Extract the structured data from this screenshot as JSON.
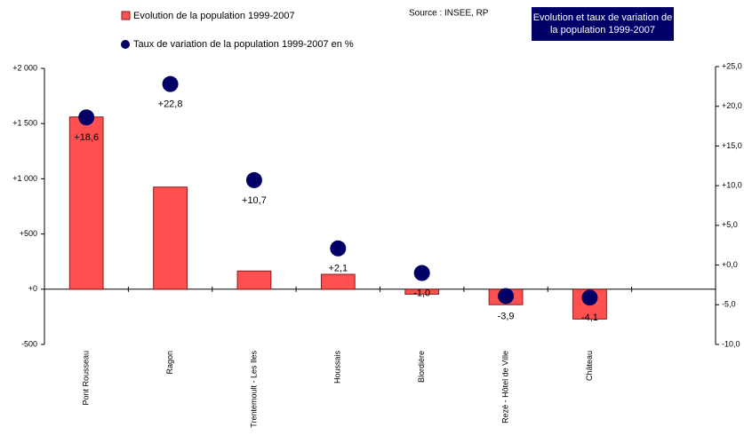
{
  "chart_data": {
    "type": "bar",
    "title": "Evolution et taux de variation de la population 1999-2007",
    "source": "Source : INSEE, RP",
    "categories": [
      "Pont Rousseau",
      "Ragon",
      "Trentemoult - Les Iles",
      "Houssais",
      "Blordière",
      "Rezé - Hôtel de Ville",
      "Château",
      null
    ],
    "series": [
      {
        "name": "Evolution de la population 1999-2007",
        "type": "bar",
        "color": "#ff5050",
        "values": [
          1560,
          925,
          165,
          135,
          -45,
          -140,
          -270,
          null
        ]
      },
      {
        "name": "Taux de variation de la population 1999-2007 en %",
        "type": "scatter",
        "axis": "y2",
        "color": "#000066",
        "values": [
          18.6,
          22.8,
          10.7,
          2.1,
          -1.0,
          -3.9,
          -4.1,
          null
        ],
        "value_labels": [
          "+18,6",
          "+22,8",
          "+10,7",
          "+2,1",
          "-1,0",
          "-3,9",
          "-4,1",
          null
        ]
      }
    ],
    "ylim": [
      -500,
      2000
    ],
    "yticks": [
      {
        "value": -500,
        "label": "-500"
      },
      {
        "value": 0,
        "label": "+0"
      },
      {
        "value": 500,
        "label": "+500"
      },
      {
        "value": 1000,
        "label": "+1 000"
      },
      {
        "value": 1500,
        "label": "+1 500"
      },
      {
        "value": 2000,
        "label": "+2 000"
      }
    ],
    "y2lim": [
      -10,
      25
    ],
    "y2ticks": [
      {
        "value": -10,
        "label": "-10,0"
      },
      {
        "value": -5,
        "label": "-5,0"
      },
      {
        "value": 0,
        "label": "+0,0"
      },
      {
        "value": 5,
        "label": "+5,0"
      },
      {
        "value": 10,
        "label": "+10,0"
      },
      {
        "value": 15,
        "label": "+15,0"
      },
      {
        "value": 20,
        "label": "+20,0"
      },
      {
        "value": 25,
        "label": "+25,0"
      }
    ]
  }
}
